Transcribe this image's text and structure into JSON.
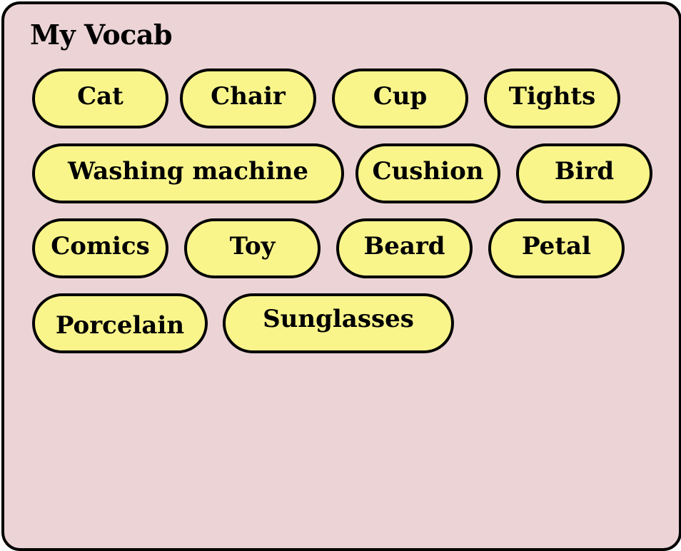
{
  "title": "My Vocab",
  "words": [
    "Cat",
    "Chair",
    "Cup",
    "Tights",
    "Washing machine",
    "Cushion",
    "Bird",
    "Comics",
    "Toy",
    "Beard",
    "Petal",
    "Porcelain",
    "Sunglasses"
  ],
  "colors": {
    "panel_background": "#ebd3d6",
    "chip_background": "#f9f58b",
    "border": "#000000"
  }
}
